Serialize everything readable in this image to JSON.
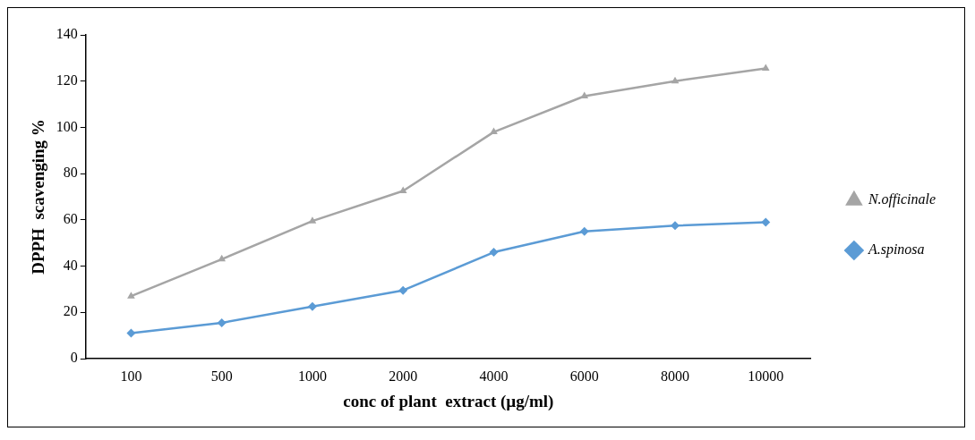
{
  "chart_data": {
    "type": "line",
    "xlabel": "conc of plant  extract (µg/ml)",
    "ylabel": "DPPH  scavenging %",
    "categories": [
      "100",
      "500",
      "1000",
      "2000",
      "4000",
      "6000",
      "8000",
      "10000"
    ],
    "series": [
      {
        "name": "N.officinale",
        "color": "#a5a5a5",
        "marker": "triangle",
        "values": [
          27,
          43,
          59.5,
          72.5,
          98,
          113.5,
          120,
          125.5
        ]
      },
      {
        "name": "A.spinosa",
        "color": "#5b9bd5",
        "marker": "diamond",
        "values": [
          11,
          15.5,
          22.5,
          29.5,
          46,
          55,
          57.5,
          59
        ]
      }
    ],
    "ylim": [
      0,
      140
    ],
    "yticks": [
      0,
      20,
      40,
      60,
      80,
      100,
      120,
      140
    ],
    "grid": false,
    "legend": "right"
  }
}
